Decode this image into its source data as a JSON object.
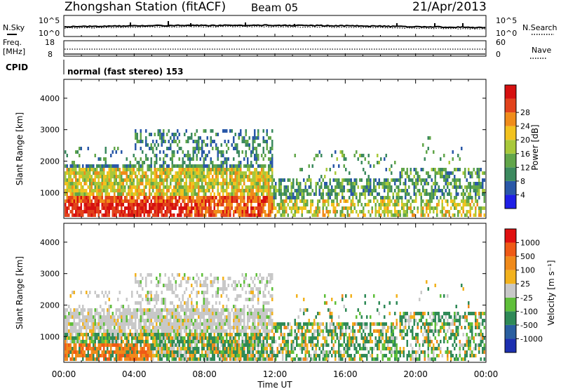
{
  "header": {
    "title": "Zhongshan Station (fitACF)",
    "beam": "Beam 05",
    "date": "21/Apr/2013"
  },
  "status_panel": {
    "nsky_label": "N.Sky",
    "nsearch_label": "N.Search",
    "freq_label_1": "Freq.",
    "freq_label_2": "[MHz]",
    "nave_label": "Nave",
    "cpid_label": "CPID",
    "cpid_value": "normal (fast stereo) 153",
    "noise_ticks": {
      "top": "10^5",
      "bottom": "10^0"
    },
    "freq_ticks": [
      "18",
      "8"
    ],
    "nave_ticks": [
      "60",
      "0"
    ]
  },
  "chart_data": [
    {
      "type": "heatmap",
      "panel": "power",
      "ylabel": "Slant Range [km]",
      "yticks": [
        "1000",
        "2000",
        "3000",
        "4000"
      ],
      "ylim": [
        180,
        4600
      ],
      "xlim_hours": [
        0,
        24
      ],
      "colorbar": {
        "label": "Power [dB]",
        "ticks": [
          "4",
          "8",
          "12",
          "16",
          "20",
          "24",
          "28"
        ],
        "colors": [
          "#1f1fe6",
          "#2a58a8",
          "#3c8a5f",
          "#62a64a",
          "#a8c83a",
          "#f2c21e",
          "#f08c1a",
          "#e2431c",
          "#d61010"
        ]
      }
    },
    {
      "type": "heatmap",
      "panel": "velocity",
      "ylabel": "Slant Range [km]",
      "yticks": [
        "1000",
        "2000",
        "3000",
        "4000"
      ],
      "ylim": [
        180,
        4600
      ],
      "xlim_hours": [
        0,
        24
      ],
      "colorbar": {
        "label": "Velocity [m s⁻¹]",
        "ticks": [
          "1000",
          "500",
          "100",
          "25",
          "-25",
          "-100",
          "-500",
          "-1000"
        ],
        "colors": [
          "#1c2fb0",
          "#2a5fa0",
          "#2f8a57",
          "#5fbf3a",
          "#c8c8c8",
          "#f2b21e",
          "#f08a1a",
          "#ef5a16",
          "#e01010"
        ]
      }
    }
  ],
  "xaxis": {
    "label": "Time UT",
    "ticks": [
      "00:00",
      "04:00",
      "08:00",
      "12:00",
      "16:00",
      "20:00",
      "00:00"
    ]
  }
}
